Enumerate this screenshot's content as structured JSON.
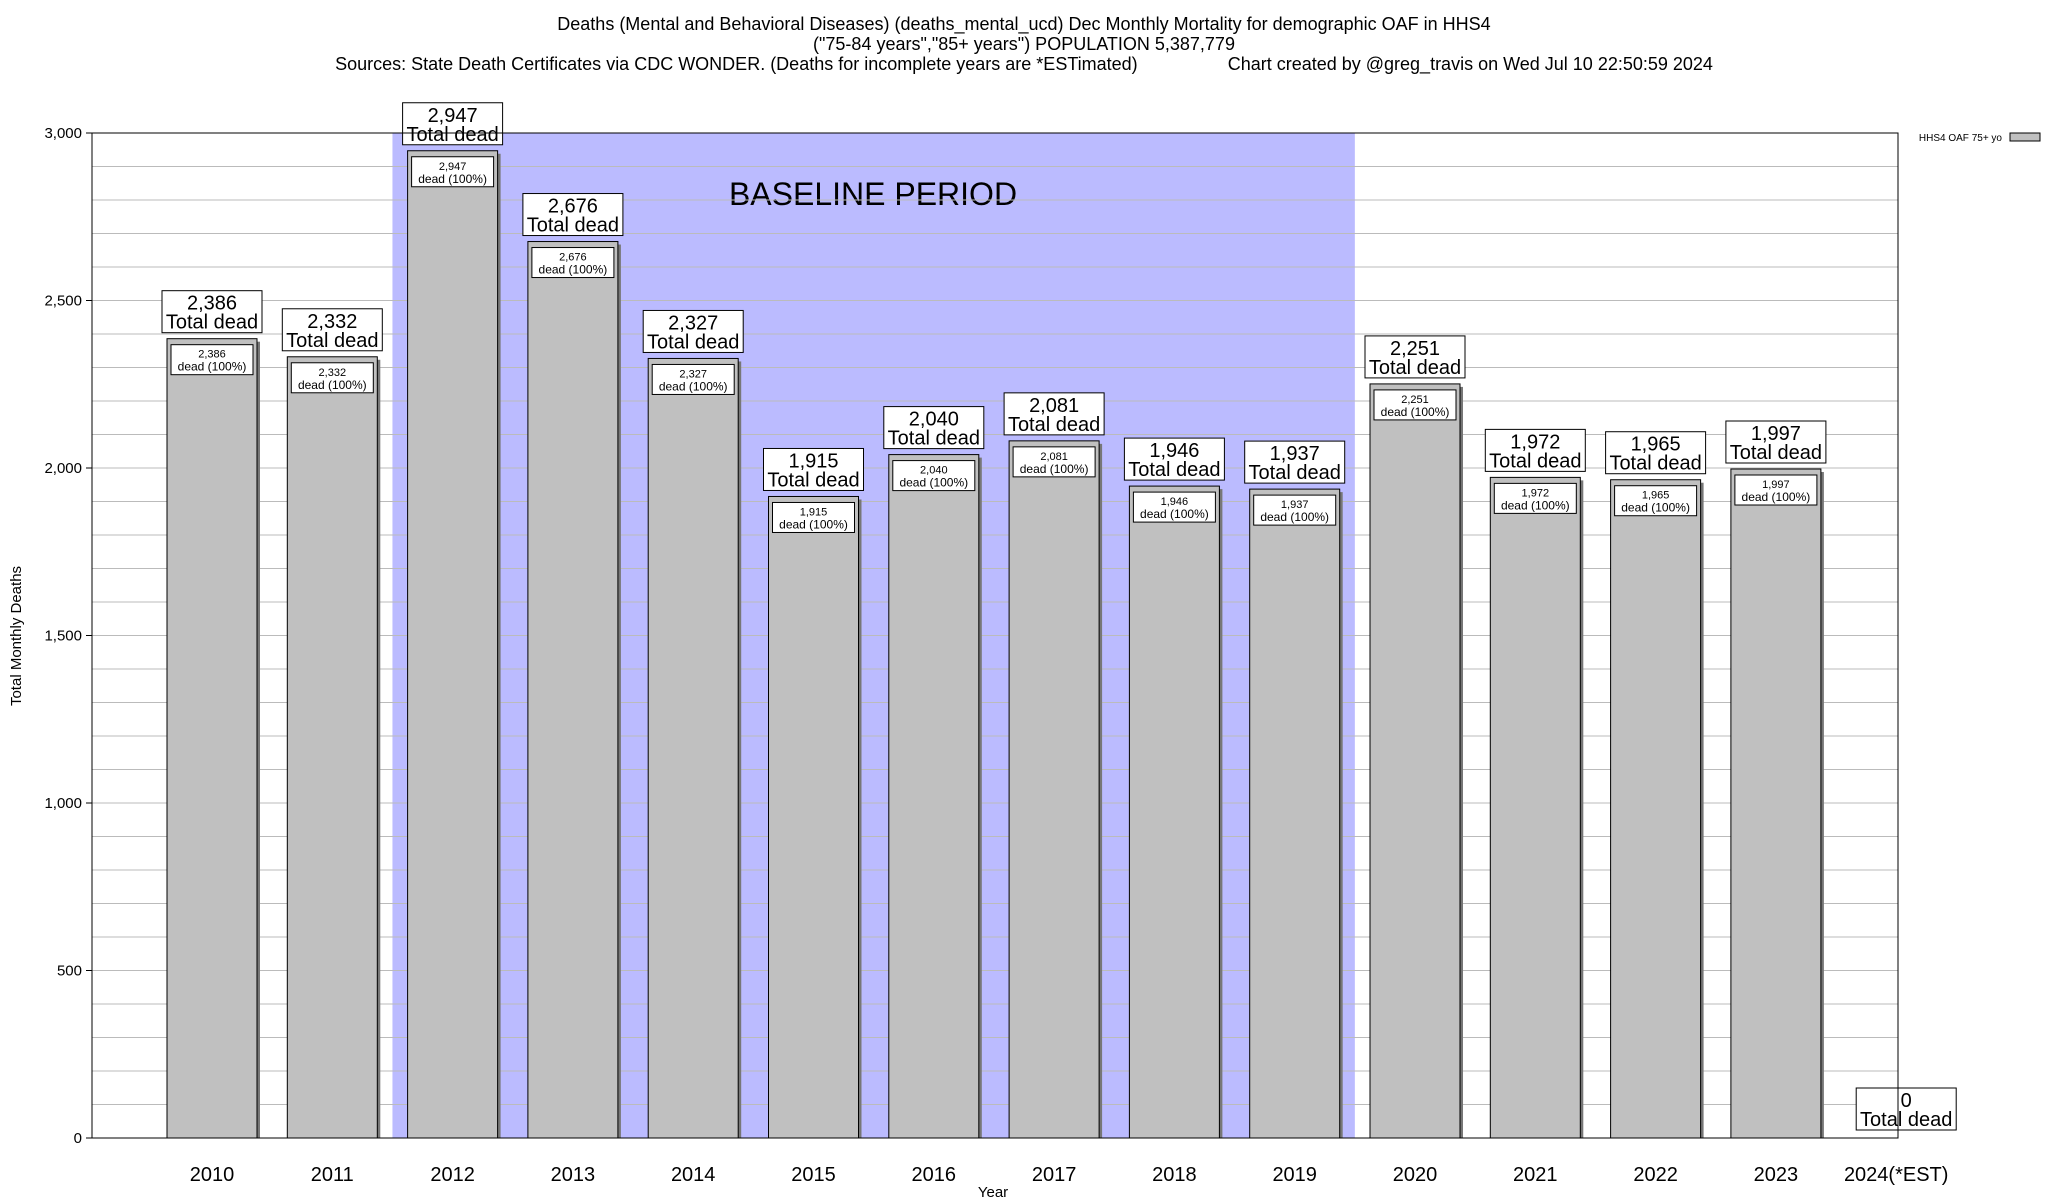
{
  "title_lines": [
    "Deaths (Mental and Behavioral Diseases) (deaths_mental_ucd) Dec Monthly Mortality for demographic OAF in HHS4",
    "(\"75-84 years\",\"85+ years\") POPULATION 5,387,779",
    "Sources: State Death Certificates via CDC WONDER. (Deaths for incomplete years are *ESTimated)                  Chart created by @greg_travis on Wed Jul 10 22:50:59 2024"
  ],
  "chart_data": {
    "type": "bar",
    "categories": [
      "2010",
      "2011",
      "2012",
      "2013",
      "2014",
      "2015",
      "2016",
      "2017",
      "2018",
      "2019",
      "2020",
      "2021",
      "2022",
      "2023",
      "2024(*EST)"
    ],
    "series": [
      {
        "name": "HHS4 OAF 75+ yo",
        "values": [
          2386,
          2332,
          2947,
          2676,
          2327,
          1915,
          2040,
          2081,
          1946,
          1937,
          2251,
          1972,
          1965,
          1997,
          0
        ]
      }
    ],
    "top_labels": [
      "2,386",
      "2,332",
      "2,947",
      "2,676",
      "2,327",
      "1,915",
      "2,040",
      "2,081",
      "1,946",
      "1,937",
      "2,251",
      "1,972",
      "1,965",
      "1,997",
      "0"
    ],
    "top_label_suffix": "Total dead",
    "inner_label_suffix": "dead (100%)",
    "xlabel": "Year",
    "ylabel": "Total Monthly Deaths",
    "ylim": [
      0,
      3000
    ],
    "yticks": [
      0,
      500,
      1000,
      1500,
      2000,
      2500,
      3000
    ],
    "ytick_labels": [
      "0",
      "500",
      "1,000",
      "1,500",
      "2,000",
      "2,500",
      "3,000"
    ],
    "minor_grid_step": 100,
    "grid": true,
    "legend_position": "top-right",
    "baseline_period": {
      "label": "BASELINE PERIOD",
      "start": "2012",
      "end": "2019"
    },
    "colors": {
      "bar": "#c0c0c0",
      "baseline_band": "#bbbbff",
      "grid": "#bbbbbb",
      "axis": "#000000"
    }
  }
}
